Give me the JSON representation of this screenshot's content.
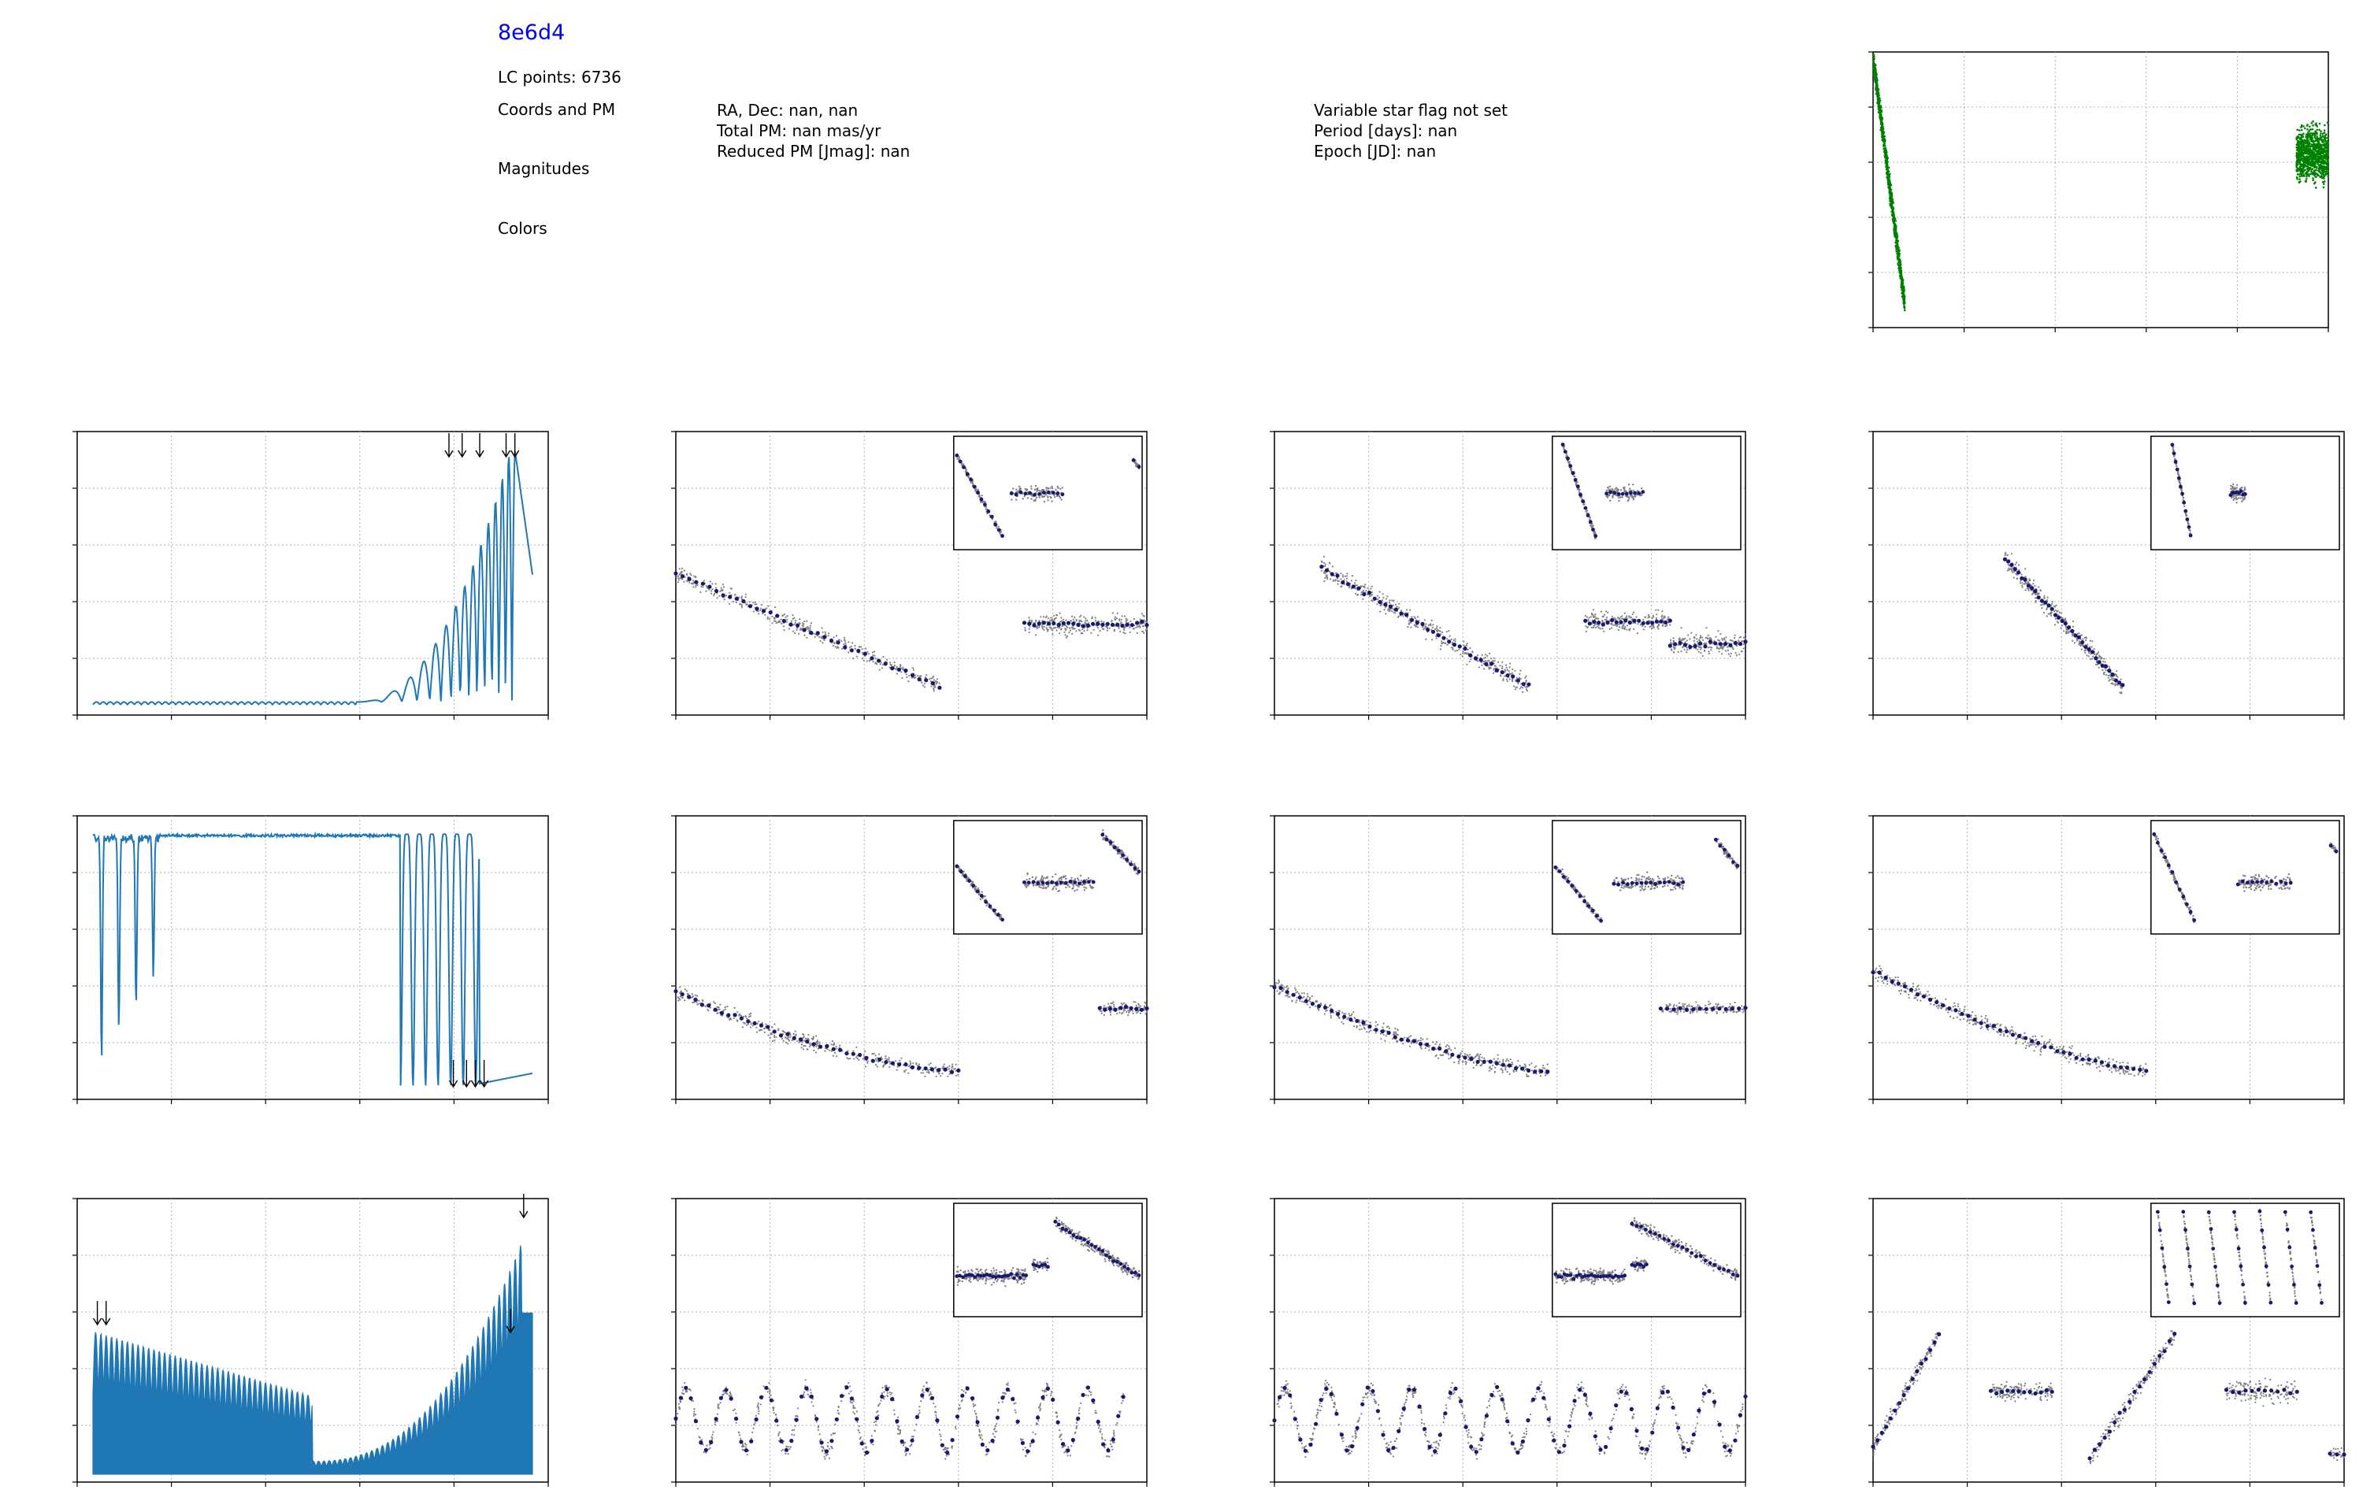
{
  "header": {
    "title": "8e6d4",
    "lc_points": "LC points: 6736",
    "coords_label": "Coords and PM",
    "magnitudes_label": "Magnitudes",
    "colors_label": "Colors",
    "radec": "RA, Dec: nan, nan",
    "total_pm": "Total PM: nan mas/yr",
    "reduced_pm": "Reduced PM [Jmag]: nan",
    "varflag": "Variable star flag not set",
    "period": "Period [days]: nan",
    "epoch": "Epoch [JD]: nan"
  },
  "colors": {
    "periodogram": "#1f77b4",
    "lightcurve_green": "#008000",
    "folded_gray": "#808080",
    "folded_binned": "#191970",
    "axis": "#000000",
    "grid": "#b0b0b0"
  },
  "chart_data": [
    {
      "id": "lc",
      "type": "scatter",
      "xlim": [
        0,
        100
      ],
      "ylim": [
        0,
        1
      ],
      "grid": true,
      "series": [
        {
          "values": "approx: steep decline segment x≈0-7, y 0.98→0.08; cluster x≈93-100, y 0.45-0.85"
        }
      ]
    },
    {
      "id": "pg1",
      "type": "line",
      "xlim": [
        0,
        1
      ],
      "ylim": [
        0,
        1
      ],
      "grid": true,
      "x": [
        0.0,
        0.6,
        0.65,
        0.7,
        0.72,
        0.74,
        0.76,
        0.78,
        0.8,
        0.82,
        0.84,
        0.86,
        0.88,
        0.9,
        0.92,
        0.94,
        0.96,
        0.98,
        1.0
      ],
      "values": [
        0.01,
        0.02,
        0.06,
        0.13,
        0.3,
        0.12,
        0.5,
        0.2,
        0.65,
        0.1,
        0.88,
        0.15,
        0.95,
        0.3,
        0.97,
        0.4,
        0.99,
        0.9,
        0.52
      ],
      "peaks_x": [
        0.81,
        0.84,
        0.88,
        0.94,
        0.96
      ]
    },
    {
      "id": "pg2",
      "type": "line",
      "xlim": [
        0,
        1
      ],
      "ylim": [
        0,
        1
      ],
      "grid": true,
      "x": [
        0.0,
        0.01,
        0.02,
        0.03,
        0.05,
        0.07,
        0.08,
        0.1,
        0.12,
        0.15,
        0.7,
        0.72,
        0.74,
        0.76,
        0.78,
        0.8,
        0.82,
        0.84,
        0.86,
        0.88,
        0.9,
        0.95,
        1.0
      ],
      "values": [
        0.99,
        0.05,
        0.95,
        0.2,
        0.9,
        0.3,
        0.95,
        0.4,
        0.97,
        0.99,
        0.99,
        0.9,
        0.5,
        0.05,
        0.8,
        0.03,
        0.6,
        0.02,
        0.7,
        0.03,
        0.03,
        0.04,
        0.07
      ],
      "troughs_x": [
        0.82,
        0.85,
        0.87,
        0.89
      ]
    },
    {
      "id": "pg3",
      "type": "area",
      "xlim": [
        0,
        1
      ],
      "ylim": [
        0,
        1
      ],
      "grid": true,
      "x": [
        0.0,
        0.05,
        0.1,
        0.2,
        0.3,
        0.4,
        0.5,
        0.6,
        0.7,
        0.8,
        0.85,
        0.9,
        0.93,
        0.96,
        0.99,
        1.0
      ],
      "values": [
        0.55,
        0.45,
        0.38,
        0.28,
        0.18,
        0.1,
        0.05,
        0.08,
        0.13,
        0.25,
        0.35,
        0.45,
        0.55,
        0.85,
        1.0,
        0.65
      ],
      "peaks_x": [
        0.01,
        0.03,
        0.95,
        0.98
      ]
    },
    {
      "id": "f11",
      "type": "scatter",
      "xlim": [
        0,
        1
      ],
      "ylim": [
        0,
        1
      ],
      "grid": true,
      "inset": true,
      "series": [
        {
          "values": "approx: decline x 0-0.55 y 0.55→0.1; flat cluster x 0.75-1.0 y≈0.33"
        }
      ]
    },
    {
      "id": "f12",
      "type": "scatter",
      "xlim": [
        0,
        1
      ],
      "ylim": [
        0,
        1
      ],
      "grid": true,
      "inset": true,
      "series": [
        {
          "values": "approx: decline x 0.1-0.55 y 0.55→0.1; flat cluster x 0.65-1.0 y≈0.33"
        }
      ]
    },
    {
      "id": "f13",
      "type": "scatter",
      "xlim": [
        0,
        1
      ],
      "ylim": [
        0,
        1
      ],
      "grid": true,
      "inset": true,
      "series": [
        {
          "values": "approx: decline x 0.28-0.52 y 0.55→0.1"
        }
      ]
    },
    {
      "id": "f21",
      "type": "scatter",
      "xlim": [
        0,
        1
      ],
      "ylim": [
        0,
        1
      ],
      "grid": true,
      "inset": true,
      "series": [
        {
          "values": "approx: decline x 0-0.6 y 0.35→0.08; cluster x 0.9-1.0 y≈0.32"
        }
      ]
    },
    {
      "id": "f22",
      "type": "scatter",
      "xlim": [
        0,
        1
      ],
      "ylim": [
        0,
        1
      ],
      "grid": true,
      "inset": true,
      "series": [
        {
          "values": "approx: decline x 0-0.58 y 0.4→0.08; cluster x 0.83-1.0 y≈0.32"
        }
      ]
    },
    {
      "id": "f23",
      "type": "scatter",
      "xlim": [
        0,
        1
      ],
      "ylim": [
        0,
        1
      ],
      "grid": true,
      "inset": true,
      "series": [
        {
          "values": "approx: decline x 0-0.58 y 0.45→0.08"
        }
      ]
    },
    {
      "id": "f31",
      "type": "scatter",
      "xlim": [
        0,
        1
      ],
      "ylim": [
        0,
        1
      ],
      "grid": true,
      "inset": true,
      "series": [
        {
          "values": "approx: oscillating x 0-0.95 y 0.1-0.35"
        }
      ]
    },
    {
      "id": "f32",
      "type": "scatter",
      "xlim": [
        0,
        1
      ],
      "ylim": [
        0,
        1
      ],
      "grid": true,
      "inset": true,
      "series": [
        {
          "values": "approx: oscillating x 0-1.0 y 0.1-0.35"
        }
      ]
    },
    {
      "id": "f33",
      "type": "scatter",
      "xlim": [
        0,
        1
      ],
      "ylim": [
        0,
        1
      ],
      "grid": true,
      "inset": true,
      "series": [
        {
          "values": "approx: rising segments x 0-0.15 and x 0.45-0.65; clusters x 0.25-0.38 and x 0.75-0.9 y≈0.3"
        }
      ]
    }
  ]
}
